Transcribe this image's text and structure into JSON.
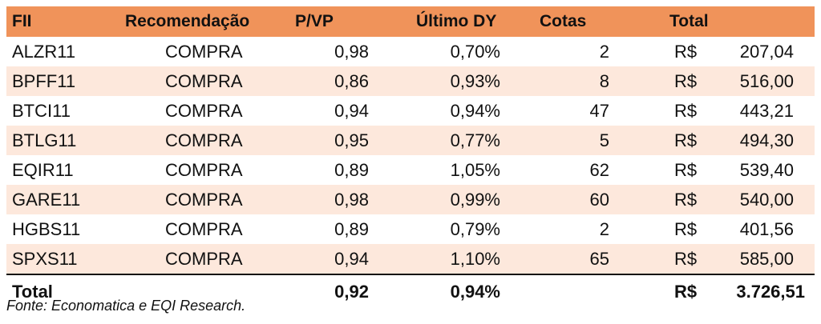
{
  "columns": [
    "FII",
    "Recomendação",
    "P/VP",
    "Último DY",
    "Cotas",
    "Total"
  ],
  "rows": [
    {
      "fii": "ALZR11",
      "rec": "COMPRA",
      "pvp": "0,98",
      "dy": "0,70%",
      "cotas": "2",
      "cur": "R$",
      "total": "207,04"
    },
    {
      "fii": "BPFF11",
      "rec": "COMPRA",
      "pvp": "0,86",
      "dy": "0,93%",
      "cotas": "8",
      "cur": "R$",
      "total": "516,00"
    },
    {
      "fii": "BTCI11",
      "rec": "COMPRA",
      "pvp": "0,94",
      "dy": "0,94%",
      "cotas": "47",
      "cur": "R$",
      "total": "443,21"
    },
    {
      "fii": "BTLG11",
      "rec": "COMPRA",
      "pvp": "0,95",
      "dy": "0,77%",
      "cotas": "5",
      "cur": "R$",
      "total": "494,30"
    },
    {
      "fii": "EQIR11",
      "rec": "COMPRA",
      "pvp": "0,89",
      "dy": "1,05%",
      "cotas": "62",
      "cur": "R$",
      "total": "539,40"
    },
    {
      "fii": "GARE11",
      "rec": "COMPRA",
      "pvp": "0,98",
      "dy": "0,99%",
      "cotas": "60",
      "cur": "R$",
      "total": "540,00"
    },
    {
      "fii": "HGBS11",
      "rec": "COMPRA",
      "pvp": "0,89",
      "dy": "0,79%",
      "cotas": "2",
      "cur": "R$",
      "total": "401,56"
    },
    {
      "fii": "SPXS11",
      "rec": "COMPRA",
      "pvp": "0,94",
      "dy": "1,10%",
      "cotas": "65",
      "cur": "R$",
      "total": "585,00"
    }
  ],
  "totals": {
    "label": "Total",
    "pvp": "0,92",
    "dy": "0,94%",
    "cur": "R$",
    "total": "3.726,51"
  },
  "source": "Fonte: Economatica e EQI Research.",
  "colors": {
    "header": "#f0935a",
    "shade": "#fde8dc"
  }
}
